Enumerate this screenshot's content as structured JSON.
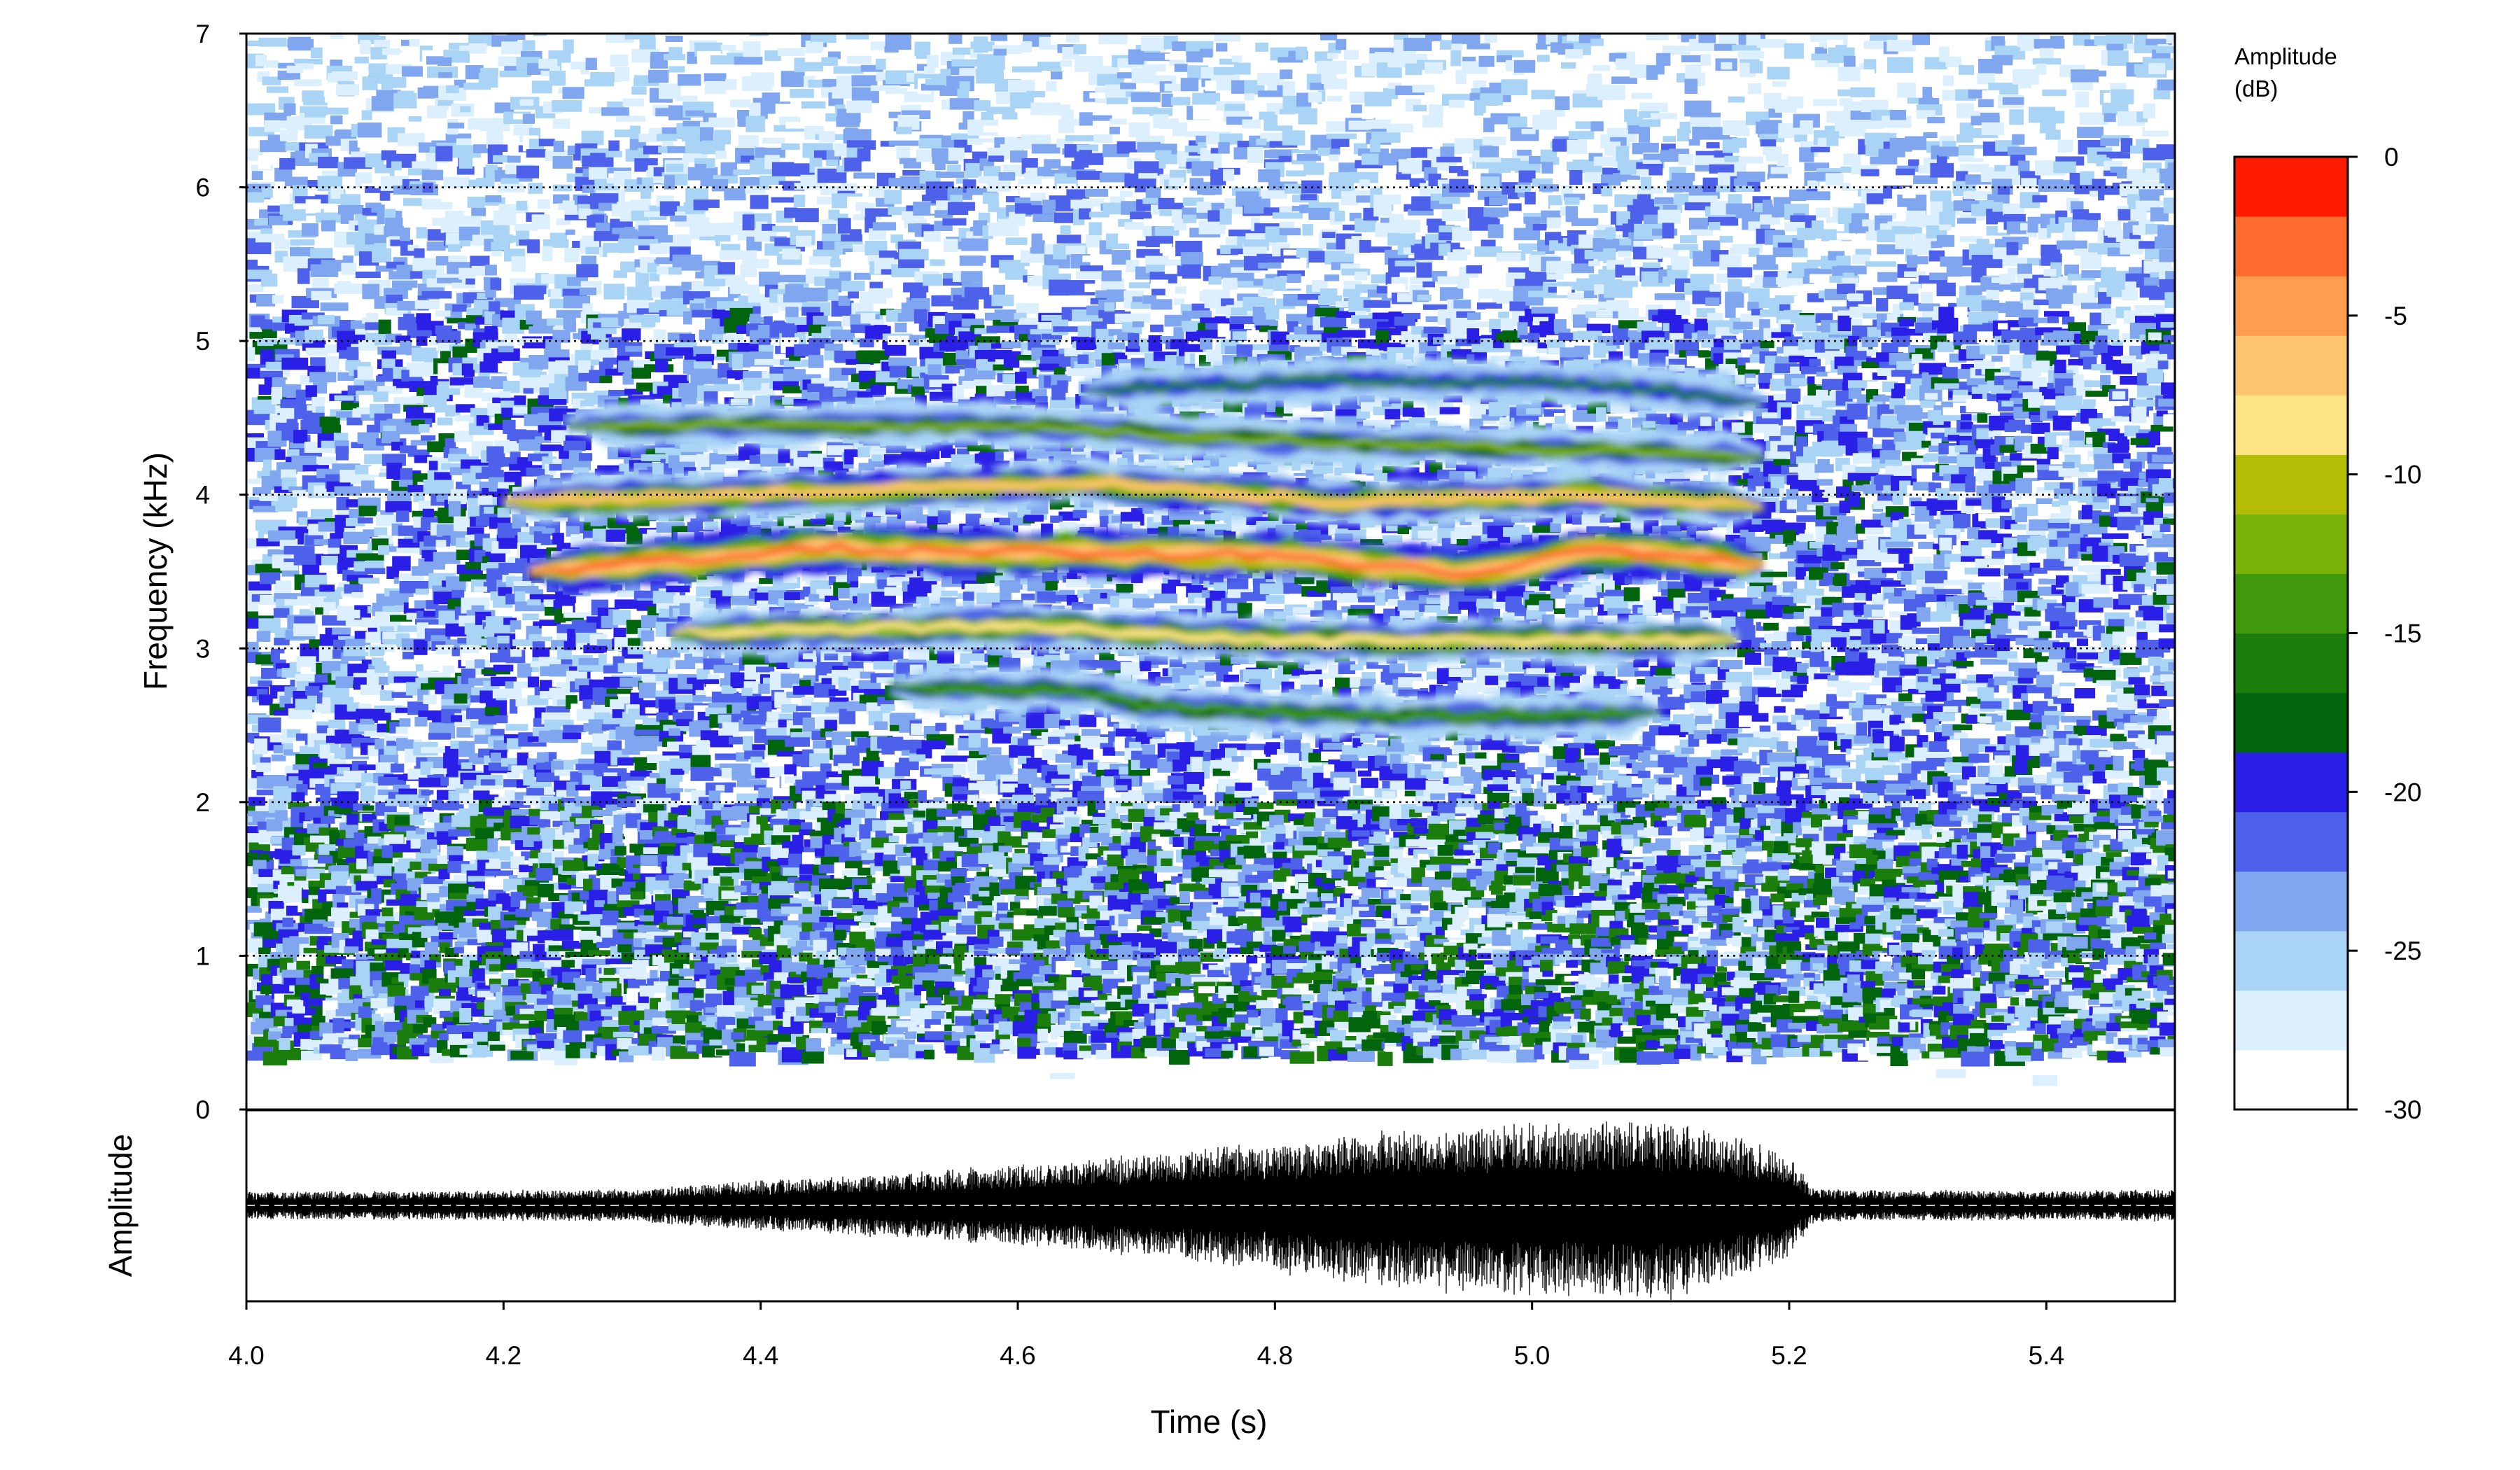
{
  "chart_data": {
    "type": "heatmap",
    "subtype": "spectrogram with oscillogram",
    "spectrogram": {
      "xlabel": "Time (s)",
      "ylabel": "Frequency (kHz)",
      "xlim": [
        4.0,
        5.5
      ],
      "ylim": [
        0,
        7
      ],
      "x_ticks": [
        "4.0",
        "4.2",
        "4.4",
        "4.6",
        "4.8",
        "5.0",
        "5.2",
        "5.4"
      ],
      "y_ticks": [
        "0",
        "1",
        "2",
        "3",
        "4",
        "5",
        "6",
        "7"
      ],
      "grid": "horizontal dotted lines at 1-6 kHz",
      "colorbar": {
        "title_line1": "Amplitude",
        "title_line2": "(dB)",
        "range_db": [
          -30,
          0
        ],
        "ticks": [
          "0",
          "-5",
          "-10",
          "-15",
          "-20",
          "-25",
          "-30"
        ],
        "bands": [
          {
            "range_db": [
              -30,
              -20
            ],
            "colors": [
              "#ffffff",
              "#dcefff",
              "#a9d4f5",
              "#7fa6ef",
              "#4d61ea",
              "#2a1fe6"
            ]
          },
          {
            "range_db": [
              -20,
              -10
            ],
            "colors": [
              "#00650d",
              "#1b7d0c",
              "#409a0c",
              "#7ab20c",
              "#b3bd05"
            ]
          },
          {
            "range_db": [
              -10,
              0
            ],
            "colors": [
              "#ffe486",
              "#ffc46e",
              "#ff9c4f",
              "#ff6a2e",
              "#ff1a00"
            ]
          }
        ]
      },
      "harmonic_bands": [
        {
          "name": "band-2.7",
          "points": [
            [
              4.5,
              2.75
            ],
            [
              4.65,
              2.72
            ],
            [
              4.7,
              2.62
            ],
            [
              4.9,
              2.55
            ],
            [
              5.1,
              2.58
            ]
          ],
          "peak_db": -14
        },
        {
          "name": "band-3.0",
          "points": [
            [
              4.33,
              3.1
            ],
            [
              4.6,
              3.15
            ],
            [
              4.8,
              3.05
            ],
            [
              5.0,
              3.05
            ],
            [
              5.16,
              3.05
            ]
          ],
          "peak_db": -8
        },
        {
          "name": "band-3.6",
          "points": [
            [
              4.22,
              3.5
            ],
            [
              4.45,
              3.65
            ],
            [
              4.65,
              3.62
            ],
            [
              4.8,
              3.6
            ],
            [
              4.95,
              3.48
            ],
            [
              5.05,
              3.65
            ],
            [
              5.18,
              3.55
            ]
          ],
          "peak_db": -2
        },
        {
          "name": "band-4.0",
          "points": [
            [
              4.2,
              3.95
            ],
            [
              4.45,
              4.02
            ],
            [
              4.65,
              4.08
            ],
            [
              4.85,
              3.95
            ],
            [
              5.05,
              4.0
            ],
            [
              5.18,
              3.92
            ]
          ],
          "peak_db": -7
        },
        {
          "name": "band-4.4",
          "points": [
            [
              4.25,
              4.45
            ],
            [
              4.45,
              4.45
            ],
            [
              4.6,
              4.45
            ],
            [
              4.8,
              4.35
            ],
            [
              5.0,
              4.3
            ],
            [
              5.18,
              4.25
            ]
          ],
          "peak_db": -13
        },
        {
          "name": "band-4.7",
          "points": [
            [
              4.65,
              4.68
            ],
            [
              4.85,
              4.75
            ],
            [
              5.05,
              4.72
            ],
            [
              5.18,
              4.6
            ]
          ],
          "peak_db": -16
        }
      ]
    },
    "oscillogram": {
      "ylabel": "Amplitude",
      "baseline": "dashed zero line",
      "envelope": [
        [
          4.0,
          0.15
        ],
        [
          4.3,
          0.18
        ],
        [
          4.4,
          0.28
        ],
        [
          4.6,
          0.45
        ],
        [
          4.8,
          0.7
        ],
        [
          4.95,
          0.9
        ],
        [
          5.12,
          0.95
        ],
        [
          5.2,
          0.55
        ],
        [
          5.22,
          0.18
        ],
        [
          5.4,
          0.16
        ],
        [
          5.5,
          0.18
        ]
      ]
    }
  }
}
